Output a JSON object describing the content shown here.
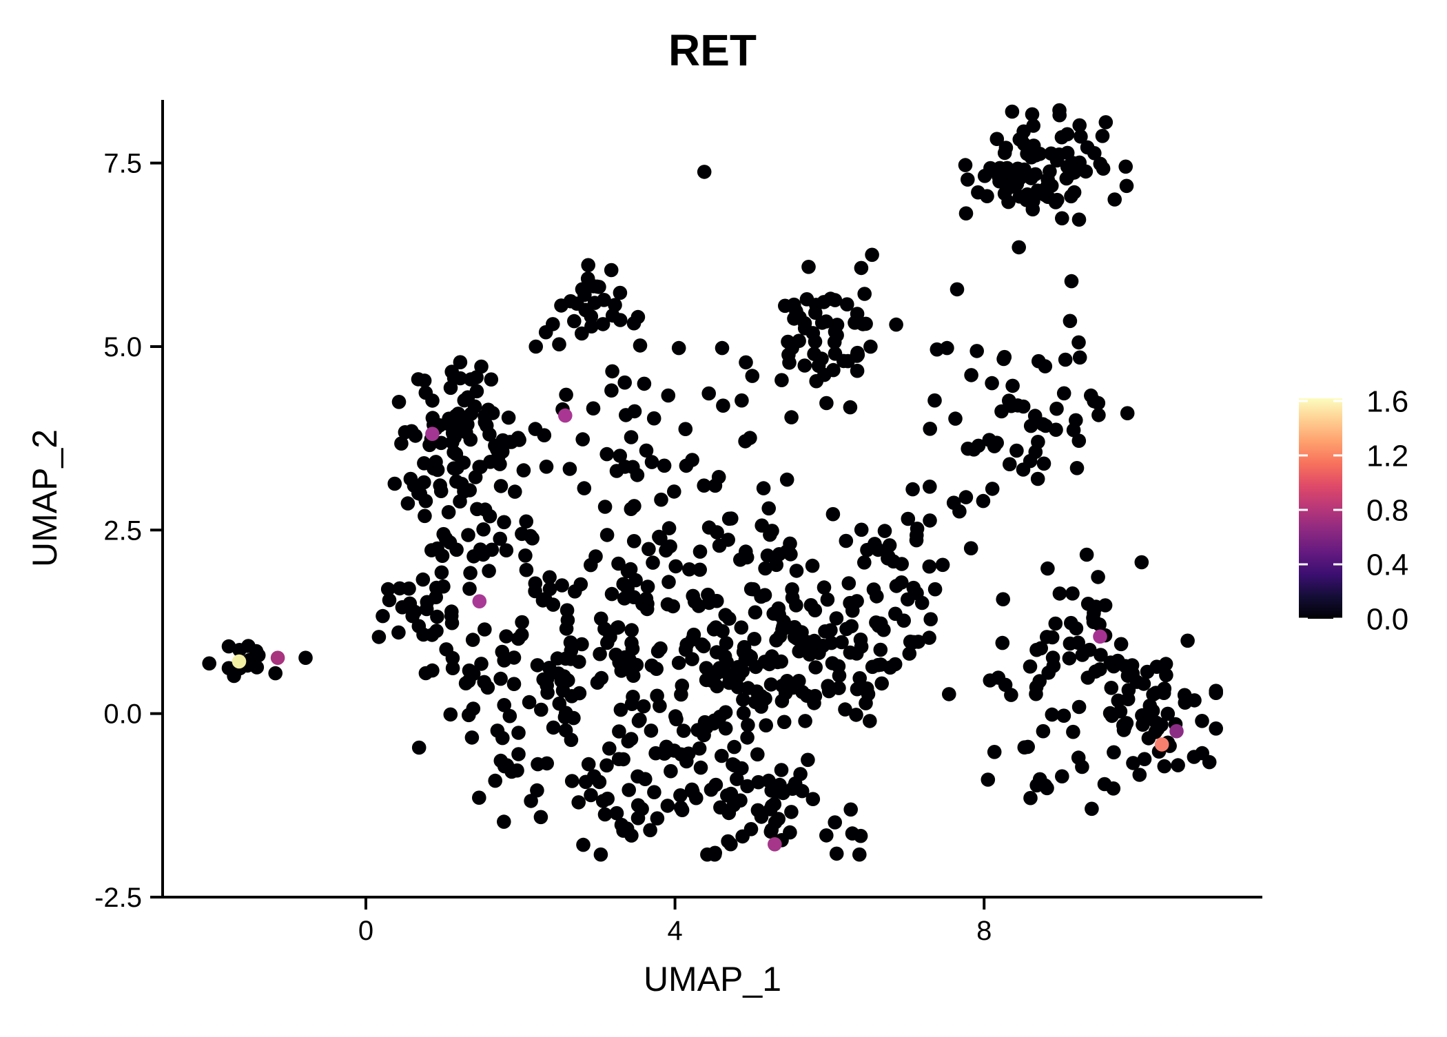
{
  "chart_data": {
    "type": "scatter",
    "title": "RET",
    "xlabel": "UMAP_1",
    "ylabel": "UMAP_2",
    "xlim": [
      -2.63,
      11.6
    ],
    "ylim": [
      -2.5,
      8.36
    ],
    "grid": false,
    "x_ticks": [
      {
        "value": 0,
        "label": "0"
      },
      {
        "value": 4,
        "label": "4"
      },
      {
        "value": 8,
        "label": "8"
      }
    ],
    "y_ticks": [
      {
        "value": 7.5,
        "label": "7.5"
      },
      {
        "value": 5.0,
        "label": "5.0"
      },
      {
        "value": 2.5,
        "label": "2.5"
      },
      {
        "value": 0.0,
        "label": "0.0"
      },
      {
        "value": -2.5,
        "label": "-2.5"
      }
    ],
    "point_color_default": "#000004",
    "point_radius_px": 10.3,
    "seed": 42,
    "clusters": [
      {
        "name": "top-right",
        "cx": 8.75,
        "cy": 7.5,
        "sx": 0.45,
        "sy": 0.35,
        "n": 78
      },
      {
        "name": "top-right-fringe",
        "cx": 8.0,
        "cy": 7.1,
        "sx": 0.3,
        "sy": 0.3,
        "n": 10
      },
      {
        "name": "upper-middle",
        "cx": 2.95,
        "cy": 5.5,
        "sx": 0.3,
        "sy": 0.28,
        "n": 30
      },
      {
        "name": "mid-top",
        "cx": 6.05,
        "cy": 5.25,
        "sx": 0.5,
        "sy": 0.42,
        "n": 55
      },
      {
        "name": "right-mid",
        "cx": 8.6,
        "cy": 4.05,
        "sx": 0.45,
        "sy": 0.45,
        "n": 48
      },
      {
        "name": "upper-left",
        "cx": 1.2,
        "cy": 3.75,
        "sx": 0.5,
        "sy": 0.52,
        "n": 95
      },
      {
        "name": "left-isolated",
        "cx": -1.6,
        "cy": 0.65,
        "sx": 0.2,
        "sy": 0.12,
        "n": 12
      },
      {
        "name": "left-mid",
        "cx": 0.55,
        "cy": 1.4,
        "sx": 0.35,
        "sy": 0.25,
        "n": 20
      },
      {
        "name": "bridge-left",
        "cx": 1.4,
        "cy": 2.4,
        "sx": 0.4,
        "sy": 0.35,
        "n": 26
      },
      {
        "name": "mid-band",
        "cx": 3.1,
        "cy": 3.6,
        "sx": 0.55,
        "sy": 0.5,
        "n": 25
      },
      {
        "name": "mid-band-2",
        "cx": 4.6,
        "cy": 3.5,
        "sx": 0.6,
        "sy": 0.6,
        "n": 18
      },
      {
        "name": "bridge-right",
        "cx": 7.3,
        "cy": 2.9,
        "sx": 0.5,
        "sy": 0.4,
        "n": 14
      },
      {
        "name": "central-left",
        "cx": 1.5,
        "cy": 0.5,
        "sx": 0.45,
        "sy": 0.65,
        "n": 40
      },
      {
        "name": "central-a",
        "cx": 2.9,
        "cy": 0.8,
        "sx": 0.75,
        "sy": 0.8,
        "n": 95
      },
      {
        "name": "central-b",
        "cx": 4.5,
        "cy": 0.3,
        "sx": 0.85,
        "sy": 0.85,
        "n": 100
      },
      {
        "name": "central-c",
        "cx": 5.9,
        "cy": 1.0,
        "sx": 0.7,
        "sy": 0.7,
        "n": 95
      },
      {
        "name": "central-top",
        "cx": 4.2,
        "cy": 2.1,
        "sx": 0.7,
        "sy": 0.4,
        "n": 38
      },
      {
        "name": "central-right-bulge",
        "cx": 6.75,
        "cy": 1.85,
        "sx": 0.4,
        "sy": 0.5,
        "n": 30
      },
      {
        "name": "bottom-arc",
        "cx": 3.5,
        "cy": -1.05,
        "sx": 0.85,
        "sy": 0.45,
        "n": 55
      },
      {
        "name": "bottom-right",
        "cx": 5.3,
        "cy": -1.3,
        "sx": 0.55,
        "sy": 0.35,
        "n": 40
      },
      {
        "name": "right-a",
        "cx": 9.35,
        "cy": 0.9,
        "sx": 0.55,
        "sy": 0.55,
        "n": 55
      },
      {
        "name": "right-b",
        "cx": 10.1,
        "cy": -0.1,
        "sx": 0.45,
        "sy": 0.5,
        "n": 55
      },
      {
        "name": "right-tail",
        "cx": 8.8,
        "cy": -0.8,
        "sx": 0.35,
        "sy": 0.35,
        "n": 12
      }
    ],
    "outlier_points": [
      {
        "x": -0.78,
        "y": 0.76
      },
      {
        "x": -1.17,
        "y": 0.55
      },
      {
        "x": 4.05,
        "y": 4.98
      },
      {
        "x": 4.61,
        "y": 4.98
      },
      {
        "x": 3.35,
        "y": 4.51
      },
      {
        "x": 7.39,
        "y": 4.96
      },
      {
        "x": 7.52,
        "y": 4.98
      },
      {
        "x": 7.65,
        "y": 5.78
      },
      {
        "x": 9.13,
        "y": 5.89
      },
      {
        "x": 5.0,
        "y": 4.6
      },
      {
        "x": 2.2,
        "y": 5.0
      },
      {
        "x": 8.05,
        "y": -0.9
      },
      {
        "x": 8.6,
        "y": -1.15
      },
      {
        "x": 10.82,
        "y": -0.1
      },
      {
        "x": 10.6,
        "y": 0.15
      },
      {
        "x": 6.55,
        "y": 6.25
      },
      {
        "x": 4.38,
        "y": 7.38
      }
    ],
    "expressing_points": [
      {
        "x": -1.64,
        "y": 0.71,
        "value": 1.6,
        "color": "#f3efa3"
      },
      {
        "x": -1.14,
        "y": 0.76,
        "value": 0.75,
        "color": "#a8347f"
      },
      {
        "x": 0.86,
        "y": 3.81,
        "value": 0.72,
        "color": "#a33693"
      },
      {
        "x": 2.58,
        "y": 4.06,
        "value": 0.72,
        "color": "#aa3693"
      },
      {
        "x": 1.47,
        "y": 1.53,
        "value": 0.72,
        "color": "#a83a96"
      },
      {
        "x": 5.29,
        "y": -1.78,
        "value": 0.72,
        "color": "#a53689"
      },
      {
        "x": 9.5,
        "y": 1.05,
        "value": 0.72,
        "color": "#a53292"
      },
      {
        "x": 10.49,
        "y": -0.24,
        "value": 0.55,
        "color": "#8c2d85"
      },
      {
        "x": 10.3,
        "y": -0.42,
        "value": 1.15,
        "color": "#f77f6e"
      }
    ],
    "legend": {
      "position": "right",
      "colormap": "magma",
      "value_at_top": 1.62,
      "tick_labels": [
        {
          "value": 1.6,
          "label": "1.6"
        },
        {
          "value": 1.2,
          "label": "1.2"
        },
        {
          "value": 0.8,
          "label": "0.8"
        },
        {
          "value": 0.4,
          "label": "0.4"
        },
        {
          "value": 0.0,
          "label": "0.0"
        }
      ],
      "gradient_stops": [
        {
          "offset": 0.0,
          "color": "#000004"
        },
        {
          "offset": 0.1,
          "color": "#140e36"
        },
        {
          "offset": 0.2,
          "color": "#3b0f70"
        },
        {
          "offset": 0.3,
          "color": "#641a80"
        },
        {
          "offset": 0.4,
          "color": "#8c2981"
        },
        {
          "offset": 0.5,
          "color": "#b73779"
        },
        {
          "offset": 0.6,
          "color": "#de4968"
        },
        {
          "offset": 0.7,
          "color": "#f7705c"
        },
        {
          "offset": 0.8,
          "color": "#fe9f6d"
        },
        {
          "offset": 0.9,
          "color": "#fece91"
        },
        {
          "offset": 1.0,
          "color": "#fcfdbf"
        }
      ],
      "tick_color": "#ffffff"
    },
    "axis_color": "#000000"
  }
}
